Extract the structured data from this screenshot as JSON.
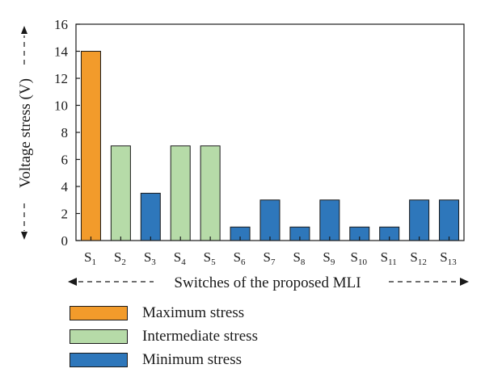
{
  "chart_data": {
    "type": "bar",
    "ylabel": "Voltage stress (V)",
    "xlabel": "Switches of the proposed MLI",
    "ylim": [
      0,
      16
    ],
    "yticks": [
      0,
      2,
      4,
      6,
      8,
      10,
      12,
      14,
      16
    ],
    "categories": [
      {
        "base": "S",
        "sub": "1"
      },
      {
        "base": "S",
        "sub": "2"
      },
      {
        "base": "S",
        "sub": "3"
      },
      {
        "base": "S",
        "sub": "4"
      },
      {
        "base": "S",
        "sub": "5"
      },
      {
        "base": "S",
        "sub": "6"
      },
      {
        "base": "S",
        "sub": "7"
      },
      {
        "base": "S",
        "sub": "8"
      },
      {
        "base": "S",
        "sub": "9"
      },
      {
        "base": "S",
        "sub": "10"
      },
      {
        "base": "S",
        "sub": "11"
      },
      {
        "base": "S",
        "sub": "12"
      },
      {
        "base": "S",
        "sub": "13"
      }
    ],
    "values": [
      14,
      7,
      3.5,
      7,
      7,
      1,
      3,
      1,
      3,
      1,
      1,
      3,
      3
    ],
    "levels": [
      "max",
      "mid",
      "min",
      "mid",
      "mid",
      "min",
      "min",
      "min",
      "min",
      "min",
      "min",
      "min",
      "min"
    ],
    "colors": {
      "max": "#f29b2b",
      "mid": "#b6dba8",
      "min": "#2e77bb"
    },
    "grid": false,
    "legend_position": "bottom-left",
    "legend": [
      {
        "key": "max",
        "label": "Maximum stress"
      },
      {
        "key": "mid",
        "label": "Intermediate stress"
      },
      {
        "key": "min",
        "label": "Minimum stress"
      }
    ]
  }
}
